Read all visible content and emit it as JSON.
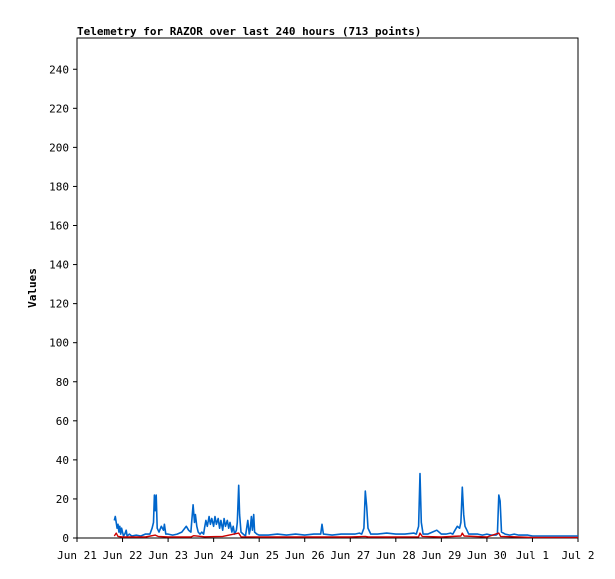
{
  "chart_data": {
    "type": "line",
    "title": "Telemetry for RAZOR over last 240 hours (713 points)",
    "xlabel": "",
    "ylabel": "Values",
    "ylim": [
      0,
      256
    ],
    "yticks": [
      0,
      20,
      40,
      60,
      80,
      100,
      120,
      140,
      160,
      180,
      200,
      220,
      240
    ],
    "xlim": [
      0,
      11
    ],
    "xticks": [
      {
        "x": 0,
        "label": "Jun 21"
      },
      {
        "x": 1,
        "label": "Jun 22"
      },
      {
        "x": 2,
        "label": "Jun 23"
      },
      {
        "x": 3,
        "label": "Jun 24"
      },
      {
        "x": 4,
        "label": "Jun 25"
      },
      {
        "x": 5,
        "label": "Jun 26"
      },
      {
        "x": 6,
        "label": "Jun 27"
      },
      {
        "x": 7,
        "label": "Jun 28"
      },
      {
        "x": 8,
        "label": "Jun 29"
      },
      {
        "x": 9,
        "label": "Jun 30"
      },
      {
        "x": 10,
        "label": "Jul 1"
      },
      {
        "x": 11,
        "label": "Jul 2"
      }
    ],
    "x_units": "days since Jun 21",
    "grid": false,
    "legend": "none",
    "series": [
      {
        "color": "#0066cc",
        "points": [
          [
            0.82,
            9
          ],
          [
            0.84,
            11
          ],
          [
            0.86,
            8
          ],
          [
            0.88,
            5
          ],
          [
            0.9,
            7
          ],
          [
            0.92,
            3
          ],
          [
            0.94,
            6
          ],
          [
            0.96,
            2
          ],
          [
            0.98,
            5
          ],
          [
            1.0,
            3
          ],
          [
            1.02,
            1
          ],
          [
            1.05,
            2
          ],
          [
            1.08,
            4
          ],
          [
            1.1,
            1
          ],
          [
            1.15,
            2
          ],
          [
            1.2,
            1
          ],
          [
            1.3,
            1.5
          ],
          [
            1.4,
            1
          ],
          [
            1.5,
            2
          ],
          [
            1.6,
            2
          ],
          [
            1.65,
            5
          ],
          [
            1.68,
            8
          ],
          [
            1.7,
            22
          ],
          [
            1.72,
            14
          ],
          [
            1.74,
            22
          ],
          [
            1.76,
            5
          ],
          [
            1.8,
            3
          ],
          [
            1.85,
            6
          ],
          [
            1.9,
            4
          ],
          [
            1.92,
            7
          ],
          [
            1.95,
            2
          ],
          [
            2.0,
            2
          ],
          [
            2.1,
            1.5
          ],
          [
            2.2,
            2
          ],
          [
            2.3,
            3
          ],
          [
            2.4,
            6
          ],
          [
            2.45,
            4
          ],
          [
            2.5,
            3
          ],
          [
            2.52,
            9
          ],
          [
            2.55,
            17
          ],
          [
            2.58,
            8
          ],
          [
            2.6,
            12
          ],
          [
            2.63,
            6
          ],
          [
            2.66,
            3
          ],
          [
            2.7,
            2
          ],
          [
            2.74,
            3
          ],
          [
            2.78,
            2
          ],
          [
            2.8,
            5
          ],
          [
            2.83,
            9
          ],
          [
            2.86,
            6
          ],
          [
            2.9,
            11
          ],
          [
            2.93,
            7
          ],
          [
            2.96,
            10
          ],
          [
            3.0,
            6
          ],
          [
            3.03,
            11
          ],
          [
            3.06,
            7
          ],
          [
            3.1,
            10
          ],
          [
            3.13,
            5
          ],
          [
            3.16,
            9
          ],
          [
            3.2,
            4
          ],
          [
            3.23,
            10
          ],
          [
            3.26,
            6
          ],
          [
            3.3,
            9
          ],
          [
            3.33,
            5
          ],
          [
            3.36,
            8
          ],
          [
            3.4,
            3
          ],
          [
            3.43,
            6
          ],
          [
            3.46,
            2
          ],
          [
            3.5,
            4
          ],
          [
            3.52,
            8
          ],
          [
            3.55,
            27
          ],
          [
            3.57,
            12
          ],
          [
            3.6,
            3
          ],
          [
            3.65,
            2
          ],
          [
            3.7,
            1
          ],
          [
            3.75,
            9
          ],
          [
            3.78,
            2
          ],
          [
            3.8,
            4
          ],
          [
            3.83,
            11
          ],
          [
            3.85,
            4
          ],
          [
            3.88,
            12
          ],
          [
            3.9,
            3
          ],
          [
            3.95,
            2
          ],
          [
            4.0,
            1.5
          ],
          [
            4.2,
            1.5
          ],
          [
            4.4,
            2
          ],
          [
            4.6,
            1.5
          ],
          [
            4.8,
            2
          ],
          [
            5.0,
            1.5
          ],
          [
            5.2,
            2
          ],
          [
            5.35,
            2
          ],
          [
            5.38,
            7
          ],
          [
            5.41,
            2
          ],
          [
            5.6,
            1.5
          ],
          [
            5.8,
            2
          ],
          [
            6.0,
            2
          ],
          [
            6.1,
            2
          ],
          [
            6.2,
            2.5
          ],
          [
            6.25,
            2
          ],
          [
            6.3,
            5
          ],
          [
            6.33,
            24
          ],
          [
            6.36,
            16
          ],
          [
            6.39,
            5
          ],
          [
            6.45,
            2
          ],
          [
            6.6,
            2
          ],
          [
            6.8,
            2.5
          ],
          [
            7.0,
            2
          ],
          [
            7.2,
            2
          ],
          [
            7.4,
            2.5
          ],
          [
            7.45,
            2
          ],
          [
            7.5,
            6
          ],
          [
            7.53,
            33
          ],
          [
            7.56,
            8
          ],
          [
            7.6,
            2
          ],
          [
            7.7,
            2
          ],
          [
            7.8,
            3
          ],
          [
            7.9,
            4
          ],
          [
            8.0,
            2
          ],
          [
            8.1,
            2
          ],
          [
            8.2,
            2.5
          ],
          [
            8.25,
            2
          ],
          [
            8.3,
            4
          ],
          [
            8.35,
            6
          ],
          [
            8.4,
            5
          ],
          [
            8.43,
            8
          ],
          [
            8.46,
            26
          ],
          [
            8.49,
            12
          ],
          [
            8.52,
            6
          ],
          [
            8.56,
            4
          ],
          [
            8.6,
            2
          ],
          [
            8.7,
            2
          ],
          [
            8.8,
            2
          ],
          [
            8.9,
            1.5
          ],
          [
            9.0,
            2
          ],
          [
            9.1,
            1.5
          ],
          [
            9.2,
            1.5
          ],
          [
            9.23,
            2
          ],
          [
            9.26,
            22
          ],
          [
            9.29,
            19
          ],
          [
            9.32,
            3
          ],
          [
            9.4,
            2
          ],
          [
            9.5,
            1.5
          ],
          [
            9.6,
            2
          ],
          [
            9.7,
            1.5
          ],
          [
            9.8,
            1.5
          ],
          [
            9.9,
            1.5
          ],
          [
            10.0,
            1
          ],
          [
            10.2,
            1
          ],
          [
            10.4,
            1
          ],
          [
            10.6,
            1
          ],
          [
            10.8,
            1
          ],
          [
            11.0,
            1
          ]
        ]
      },
      {
        "color": "#cc0000",
        "points": [
          [
            0.82,
            1
          ],
          [
            0.86,
            2.5
          ],
          [
            0.9,
            0.8
          ],
          [
            1.0,
            0.5
          ],
          [
            1.5,
            0.5
          ],
          [
            1.72,
            1.5
          ],
          [
            1.78,
            0.8
          ],
          [
            2.0,
            0.5
          ],
          [
            2.5,
            0.5
          ],
          [
            2.56,
            1.2
          ],
          [
            2.8,
            0.6
          ],
          [
            3.2,
            0.8
          ],
          [
            3.55,
            2.5
          ],
          [
            3.6,
            0.6
          ],
          [
            4.0,
            0.5
          ],
          [
            5.0,
            0.5
          ],
          [
            6.0,
            0.5
          ],
          [
            6.33,
            0.8
          ],
          [
            6.4,
            0.5
          ],
          [
            7.0,
            0.5
          ],
          [
            7.5,
            0.6
          ],
          [
            7.53,
            2.5
          ],
          [
            7.58,
            0.8
          ],
          [
            8.0,
            0.5
          ],
          [
            8.43,
            1
          ],
          [
            8.46,
            2.5
          ],
          [
            8.5,
            1
          ],
          [
            9.0,
            0.5
          ],
          [
            9.26,
            2.5
          ],
          [
            9.3,
            0.8
          ],
          [
            10.0,
            0.3
          ],
          [
            11.0,
            0.3
          ]
        ]
      }
    ]
  }
}
